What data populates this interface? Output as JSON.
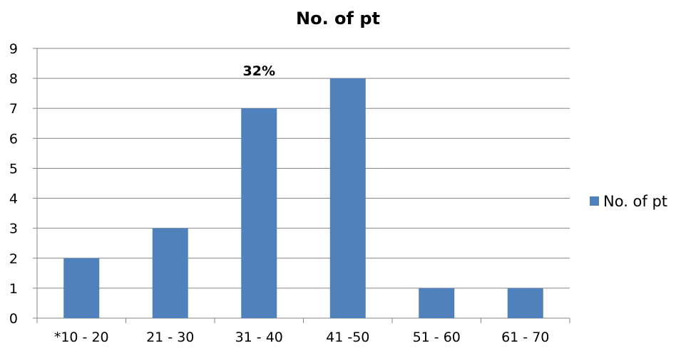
{
  "chart_data": {
    "type": "bar",
    "title": "No. of pt",
    "categories": [
      "*10 - 20",
      "21 - 30",
      "31 - 40",
      "41 -50",
      "51 - 60",
      "61 - 70"
    ],
    "series": [
      {
        "name": "No. of pt",
        "values": [
          2,
          3,
          7,
          8,
          1,
          1
        ],
        "color": "#4f81bd"
      }
    ],
    "ylim": [
      0,
      9
    ],
    "yticks": [
      0,
      1,
      2,
      3,
      4,
      5,
      6,
      7,
      8,
      9
    ],
    "grid": true,
    "legend": "right",
    "annotations": [
      {
        "text": "32%",
        "category": "31 - 40",
        "y": 8.0
      }
    ]
  }
}
